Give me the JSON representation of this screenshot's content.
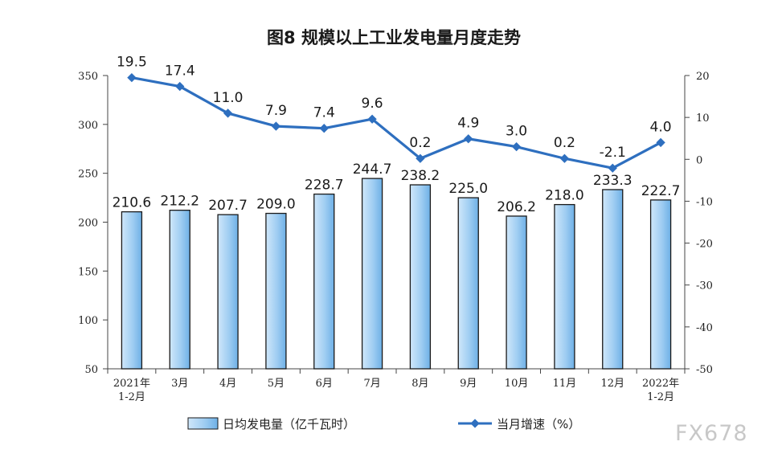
{
  "chart_data": {
    "type": "bar+line",
    "title": "图8  规模以上工业发电量月度走势",
    "categories": [
      [
        "2021年",
        "1-2月"
      ],
      [
        "3月"
      ],
      [
        "4月"
      ],
      [
        "5月"
      ],
      [
        "6月"
      ],
      [
        "7月"
      ],
      [
        "8月"
      ],
      [
        "9月"
      ],
      [
        "10月"
      ],
      [
        "11月"
      ],
      [
        "12月"
      ],
      [
        "2022年",
        "1-2月"
      ]
    ],
    "series": [
      {
        "name": "日均发电量（亿千瓦时）",
        "type": "bar",
        "axis": "left",
        "values": [
          210.6,
          212.2,
          207.7,
          209.0,
          228.7,
          244.7,
          238.2,
          225.0,
          206.2,
          218.0,
          233.3,
          222.7
        ],
        "labels": [
          "210.6",
          "212.2",
          "207.7",
          "209.0",
          "228.7",
          "244.7",
          "238.2",
          "225.0",
          "206.2",
          "218.0",
          "233.3",
          "222.7"
        ]
      },
      {
        "name": "当月增速（%）",
        "type": "line",
        "axis": "right",
        "values": [
          19.5,
          17.4,
          11.0,
          7.9,
          7.4,
          9.6,
          0.2,
          4.9,
          3.0,
          0.2,
          -2.1,
          4.0
        ],
        "labels": [
          "19.5",
          "17.4",
          "11.0",
          "7.9",
          "7.4",
          "9.6",
          "0.2",
          "4.9",
          "3.0",
          "0.2",
          "-2.1",
          "4.0"
        ]
      }
    ],
    "left_axis": {
      "ylim": [
        50,
        350
      ],
      "ticks": [
        "50",
        "100",
        "150",
        "200",
        "250",
        "300",
        "350"
      ]
    },
    "right_axis": {
      "ylim": [
        -50,
        20
      ],
      "ticks": [
        "-50",
        "-40",
        "-30",
        "-20",
        "-10",
        "0",
        "10",
        "20"
      ]
    },
    "grid": false,
    "legend_position": "bottom",
    "colors": {
      "bar_fill_top": "#b9dcf7",
      "bar_fill_bottom": "#7fbbe9",
      "bar_stroke": "#1a1a1a",
      "line": "#2e6fbf",
      "axis": "#444444"
    }
  },
  "watermark": "FX678"
}
